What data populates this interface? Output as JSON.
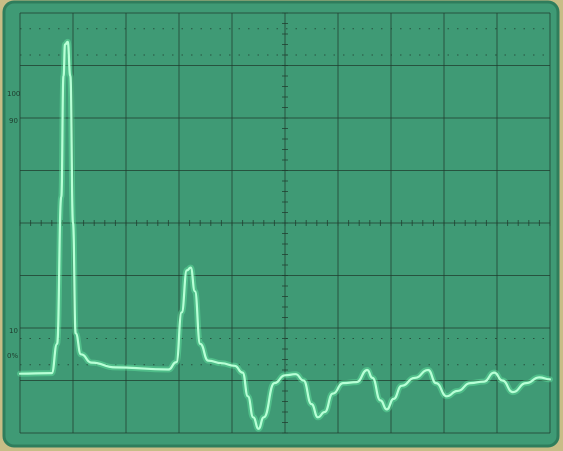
{
  "scope": {
    "bezel_color": "#c8bd86",
    "screen_color": "#3f9a75",
    "screen_edge_color": "#2f7d5c",
    "grid_color": "#1f3c2e",
    "trace_color": "#b8ffd6",
    "trace_glow_color": "#6dffb0",
    "graticule_labels": [
      "100",
      "90",
      "10",
      "0%"
    ]
  },
  "chart_data": {
    "type": "line",
    "xlim": [
      0,
      10
    ],
    "ylim": [
      0,
      8
    ],
    "grid": true,
    "divisions": {
      "x": 10,
      "y": 8
    },
    "series": [
      {
        "values": [
          [
            0.0,
            1.13
          ],
          [
            0.6,
            1.14
          ],
          [
            0.7,
            1.7
          ],
          [
            0.78,
            4.5
          ],
          [
            0.82,
            6.8
          ],
          [
            0.85,
            7.4
          ],
          [
            0.9,
            7.45
          ],
          [
            0.95,
            6.8
          ],
          [
            1.0,
            4.0
          ],
          [
            1.05,
            1.9
          ],
          [
            1.15,
            1.5
          ],
          [
            1.35,
            1.34
          ],
          [
            1.8,
            1.25
          ],
          [
            2.8,
            1.21
          ],
          [
            2.95,
            1.35
          ],
          [
            3.05,
            2.3
          ],
          [
            3.15,
            3.1
          ],
          [
            3.22,
            3.15
          ],
          [
            3.3,
            2.7
          ],
          [
            3.4,
            1.7
          ],
          [
            3.55,
            1.38
          ],
          [
            3.8,
            1.33
          ],
          [
            4.05,
            1.28
          ],
          [
            4.2,
            1.15
          ],
          [
            4.3,
            0.7
          ],
          [
            4.4,
            0.3
          ],
          [
            4.5,
            0.08
          ],
          [
            4.6,
            0.3
          ],
          [
            4.8,
            0.95
          ],
          [
            5.0,
            1.1
          ],
          [
            5.2,
            1.12
          ],
          [
            5.35,
            1.0
          ],
          [
            5.5,
            0.55
          ],
          [
            5.62,
            0.3
          ],
          [
            5.75,
            0.4
          ],
          [
            5.9,
            0.75
          ],
          [
            6.1,
            0.95
          ],
          [
            6.35,
            0.97
          ],
          [
            6.55,
            1.2
          ],
          [
            6.65,
            1.05
          ],
          [
            6.8,
            0.62
          ],
          [
            6.92,
            0.45
          ],
          [
            7.05,
            0.65
          ],
          [
            7.2,
            0.9
          ],
          [
            7.45,
            1.05
          ],
          [
            7.7,
            1.2
          ],
          [
            7.85,
            0.95
          ],
          [
            8.05,
            0.7
          ],
          [
            8.25,
            0.8
          ],
          [
            8.5,
            0.95
          ],
          [
            8.75,
            0.98
          ],
          [
            8.95,
            1.15
          ],
          [
            9.1,
            1.0
          ],
          [
            9.3,
            0.78
          ],
          [
            9.55,
            0.95
          ],
          [
            9.8,
            1.06
          ],
          [
            10.0,
            1.02
          ]
        ]
      }
    ]
  }
}
